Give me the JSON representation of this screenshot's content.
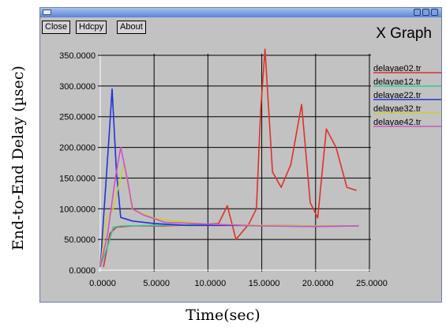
{
  "window": {
    "title": "",
    "buttons": [
      "Close",
      "Hdcpy",
      "About"
    ],
    "app_title": "X Graph"
  },
  "chart_data": {
    "type": "line",
    "title": "X Graph",
    "xlabel": "Time(sec)",
    "ylabel": "End-to-End Delay (µsec)",
    "xlim": [
      0,
      25
    ],
    "ylim": [
      0,
      350
    ],
    "grid": true,
    "background": "#c2c2c2",
    "x_ticks": [
      "0.0000",
      "5.0000",
      "10.0000",
      "15.0000",
      "20.0000",
      "25.0000"
    ],
    "y_ticks": [
      "0.0000",
      "50.0000",
      "100.0000",
      "150.0000",
      "200.0000",
      "250.0000",
      "300.0000",
      "350.0000"
    ],
    "legend_position": "right",
    "series": [
      {
        "name": "delayae02.tr",
        "color": "#e0302a",
        "points": [
          [
            0.3,
            5
          ],
          [
            0.9,
            60
          ],
          [
            1.5,
            70
          ],
          [
            3,
            72
          ],
          [
            6,
            72
          ],
          [
            9,
            74
          ],
          [
            11,
            76
          ],
          [
            11.8,
            105
          ],
          [
            12.6,
            50
          ],
          [
            13.8,
            75
          ],
          [
            14.5,
            100
          ],
          [
            14.9,
            260
          ],
          [
            15.3,
            360
          ],
          [
            16,
            160
          ],
          [
            16.8,
            135
          ],
          [
            17.7,
            172
          ],
          [
            18.7,
            270
          ],
          [
            19.5,
            110
          ],
          [
            20.2,
            85
          ],
          [
            21,
            230
          ],
          [
            21.9,
            200
          ],
          [
            22.9,
            135
          ],
          [
            23.8,
            130
          ]
        ]
      },
      {
        "name": "delayae12.tr",
        "color": "#2ec99a",
        "points": [
          [
            0,
            5
          ],
          [
            0.5,
            30
          ],
          [
            0.8,
            45
          ],
          [
            1.2,
            70
          ],
          [
            2,
            72
          ],
          [
            5,
            73
          ],
          [
            10,
            74
          ],
          [
            15,
            72
          ],
          [
            20,
            71
          ],
          [
            24,
            72
          ]
        ]
      },
      {
        "name": "delayae22.tr",
        "color": "#2233d6",
        "points": [
          [
            0,
            5
          ],
          [
            0.4,
            110
          ],
          [
            0.9,
            240
          ],
          [
            1.1,
            295
          ],
          [
            1.5,
            160
          ],
          [
            1.9,
            86
          ],
          [
            3,
            80
          ],
          [
            5,
            76
          ],
          [
            8,
            73
          ],
          [
            10,
            73
          ],
          [
            15,
            73
          ],
          [
            20,
            72
          ],
          [
            24,
            72
          ]
        ]
      },
      {
        "name": "delayae32.tr",
        "color": "#c9d02a",
        "points": [
          [
            0,
            5
          ],
          [
            0.6,
            85
          ],
          [
            1.2,
            100
          ],
          [
            2.2,
            175
          ],
          [
            3,
            98
          ],
          [
            5,
            85
          ],
          [
            7,
            80
          ],
          [
            10,
            75
          ],
          [
            15,
            73
          ],
          [
            20,
            72
          ],
          [
            24,
            72
          ]
        ]
      },
      {
        "name": "delayae42.tr",
        "color": "#d050c8",
        "points": [
          [
            0,
            5
          ],
          [
            0.7,
            60
          ],
          [
            1.4,
            150
          ],
          [
            1.9,
            200
          ],
          [
            2.5,
            150
          ],
          [
            3,
            100
          ],
          [
            4,
            90
          ],
          [
            6,
            78
          ],
          [
            10,
            75
          ],
          [
            15,
            72
          ],
          [
            20,
            71
          ],
          [
            24,
            72
          ]
        ]
      }
    ]
  }
}
